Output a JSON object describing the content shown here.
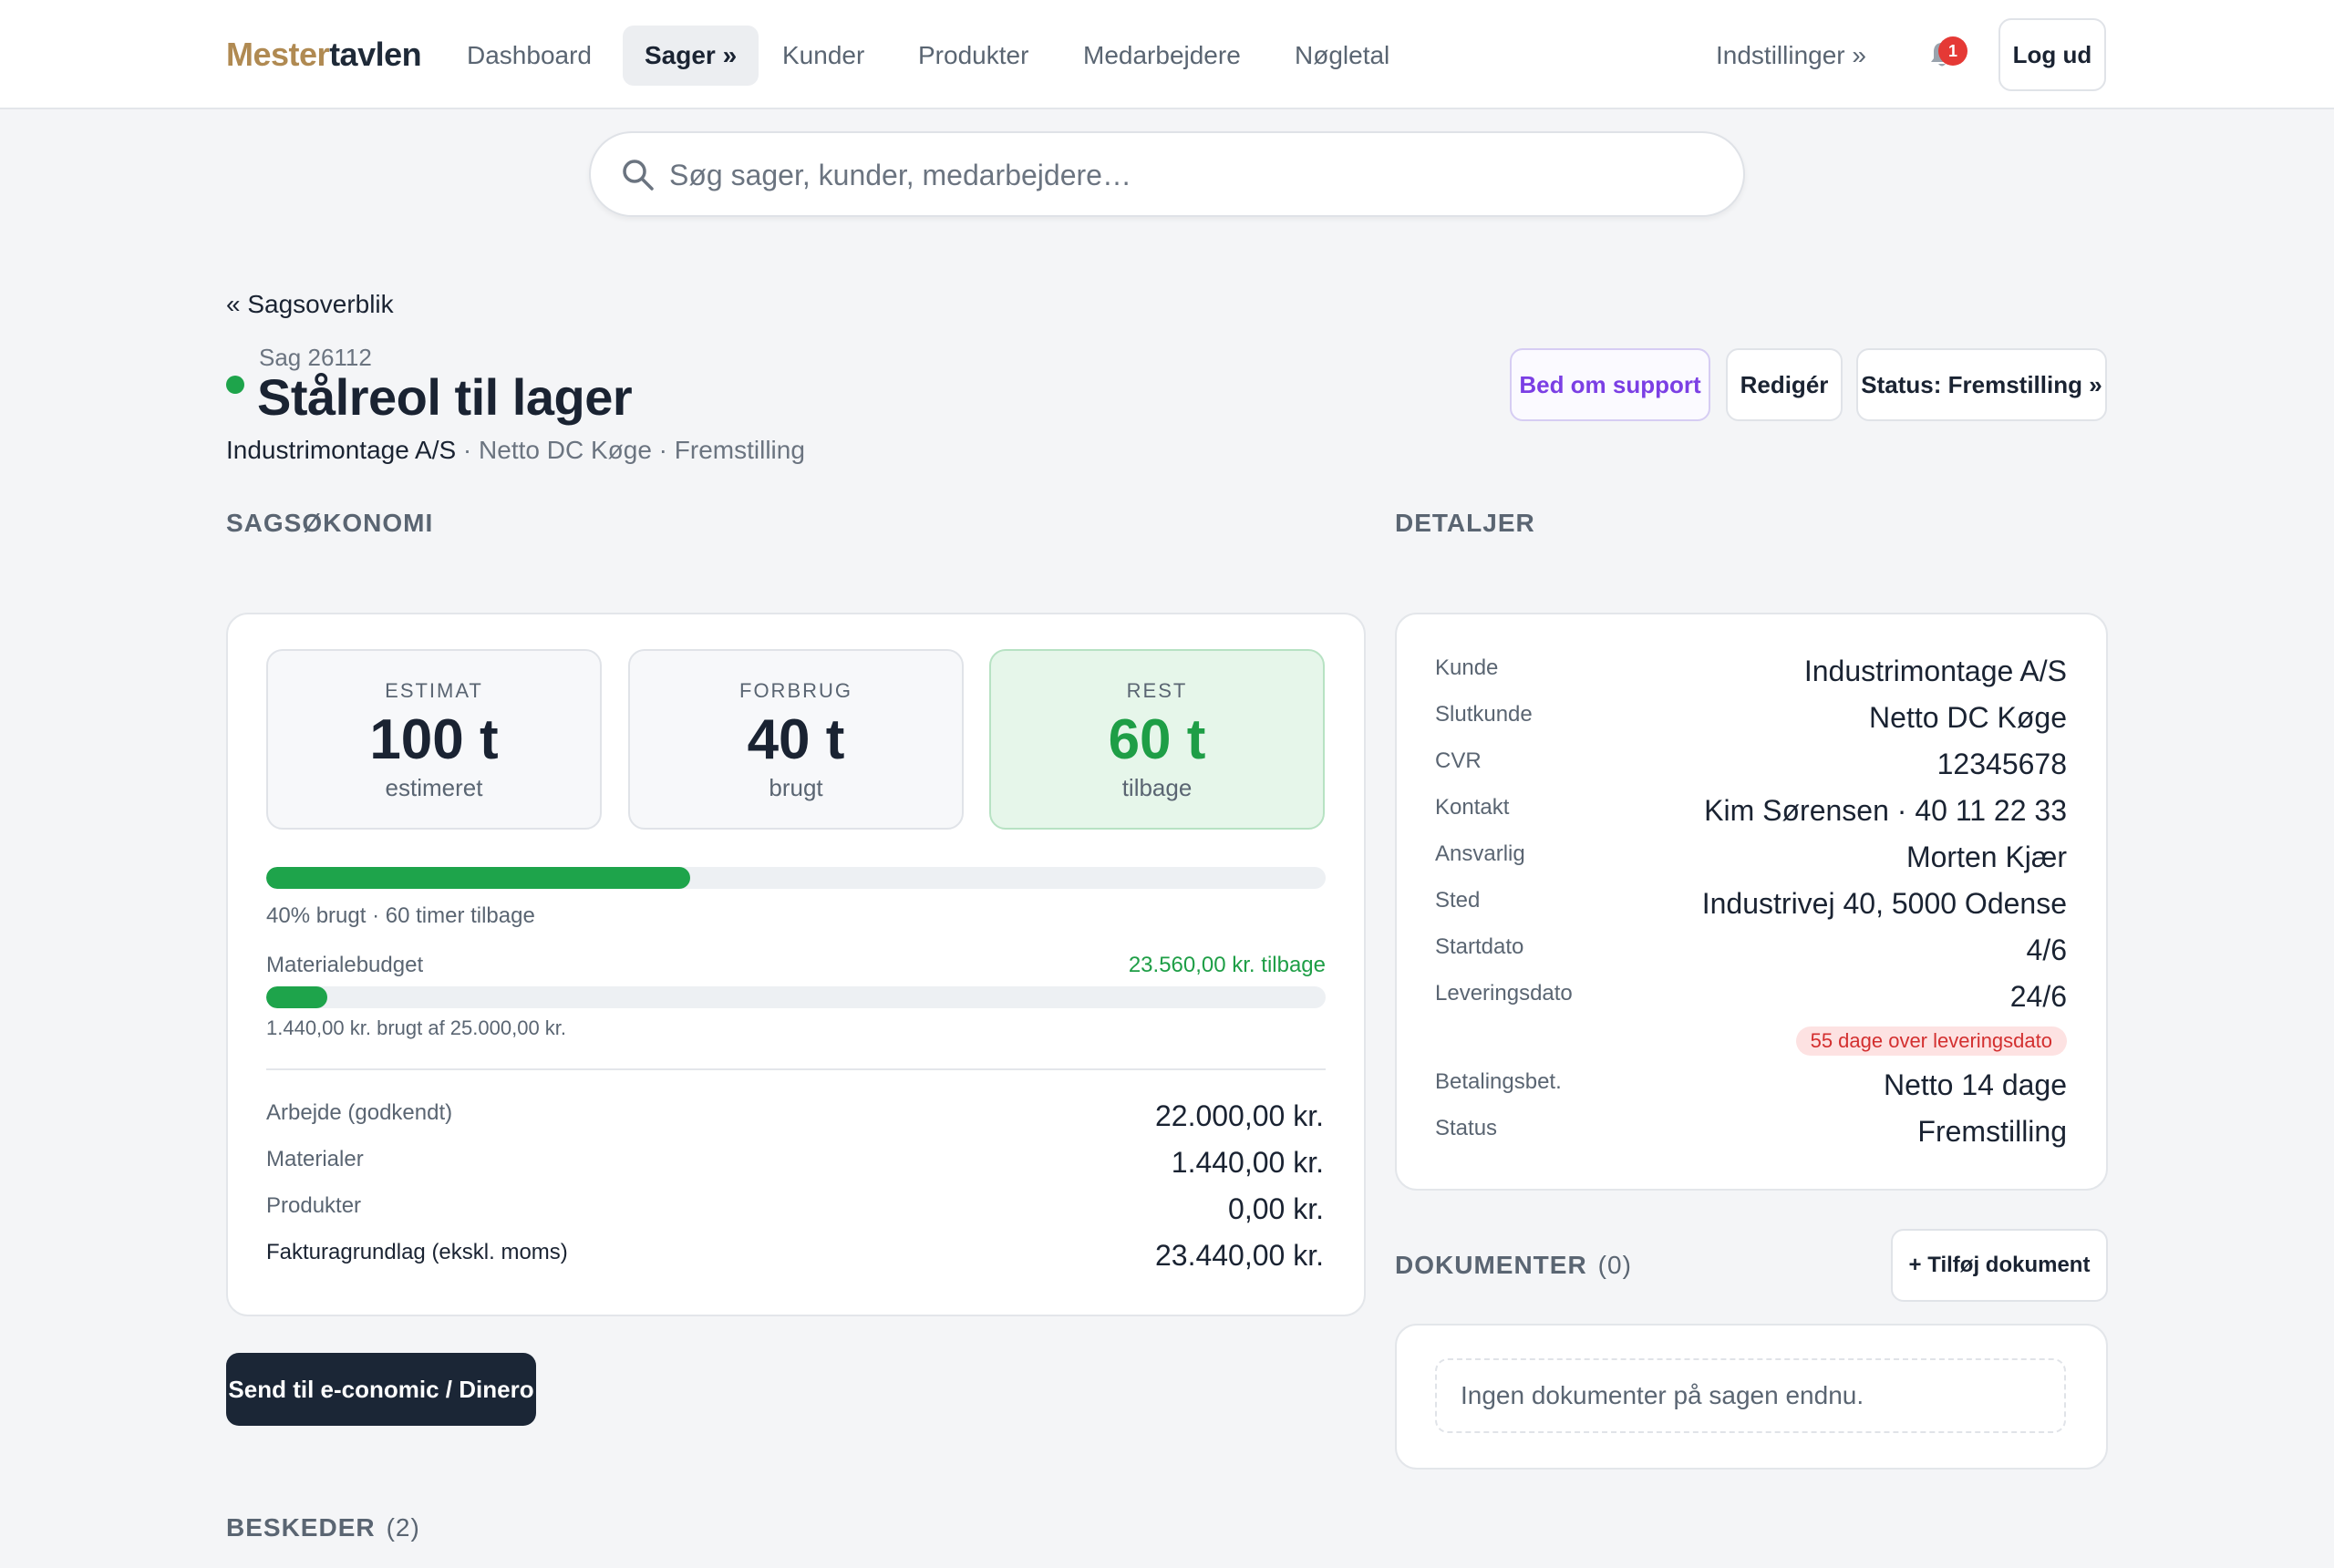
{
  "header": {
    "logo_part1": "Mester",
    "logo_part2": "tavlen",
    "nav": [
      "Dashboard",
      "Sager »",
      "Kunder",
      "Produkter",
      "Medarbejdere",
      "Nøgletal"
    ],
    "settings": "Indstillinger »",
    "notification_count": "1",
    "logout": "Log ud"
  },
  "search": {
    "placeholder": "Søg sager, kunder, medarbejdere…"
  },
  "breadcrumb": "« Sagsoverblik",
  "case": {
    "number": "Sag 26112",
    "title": "Stålreol til lager",
    "customer": "Industrimontage A/S",
    "subtitle_rest": " · Netto DC Køge · Fremstilling",
    "status_color": "#1ea44b"
  },
  "actions": {
    "support": "Bed om support",
    "edit": "Redigér",
    "status": "Status: Fremstilling »"
  },
  "economy": {
    "heading": "SAGSØKONOMI",
    "stats": [
      {
        "label": "ESTIMAT",
        "value": "100 t",
        "unit": "estimeret"
      },
      {
        "label": "FORBRUG",
        "value": "40 t",
        "unit": "brugt"
      },
      {
        "label": "REST",
        "value": "60 t",
        "unit": "tilbage"
      }
    ],
    "hours_progress": 0.4,
    "hours_text": "40% brugt · 60 timer tilbage",
    "material_label": "Materialebudget",
    "material_remaining": "23.560,00 kr. tilbage",
    "material_progress": 0.0576,
    "material_text": "1.440,00 kr. brugt af 25.000,00 kr.",
    "rows": [
      {
        "label": "Arbejde (godkendt)",
        "value": "22.000,00 kr."
      },
      {
        "label": "Materialer",
        "value": "1.440,00 kr."
      },
      {
        "label": "Produkter",
        "value": "0,00 kr."
      },
      {
        "label": "Fakturagrundlag (ekskl. moms)",
        "value": "23.440,00 kr."
      }
    ],
    "send_button": "Send til e-conomic / Dinero"
  },
  "details": {
    "heading": "DETALJER",
    "rows": [
      {
        "label": "Kunde",
        "value": "Industrimontage A/S"
      },
      {
        "label": "Slutkunde",
        "value": "Netto DC Køge"
      },
      {
        "label": "CVR",
        "value": "12345678"
      },
      {
        "label": "Kontakt",
        "value": "Kim Sørensen · 40 11 22 33"
      },
      {
        "label": "Ansvarlig",
        "value": "Morten Kjær"
      },
      {
        "label": "Sted",
        "value": "Industrivej 40, 5000 Odense"
      },
      {
        "label": "Startdato",
        "value": "4/6"
      },
      {
        "label": "Leveringsdato",
        "value": "24/6"
      },
      {
        "label": "Betalingsbet.",
        "value": "Netto 14 dage"
      },
      {
        "label": "Status",
        "value": "Fremstilling"
      }
    ],
    "overdue": "55 dage over leveringsdato"
  },
  "documents": {
    "heading": "DOKUMENTER",
    "count": "(0)",
    "add": "+ Tilføj dokument",
    "empty": "Ingen dokumenter på sagen endnu."
  },
  "messages": {
    "heading": "BESKEDER",
    "count": "(2)"
  }
}
